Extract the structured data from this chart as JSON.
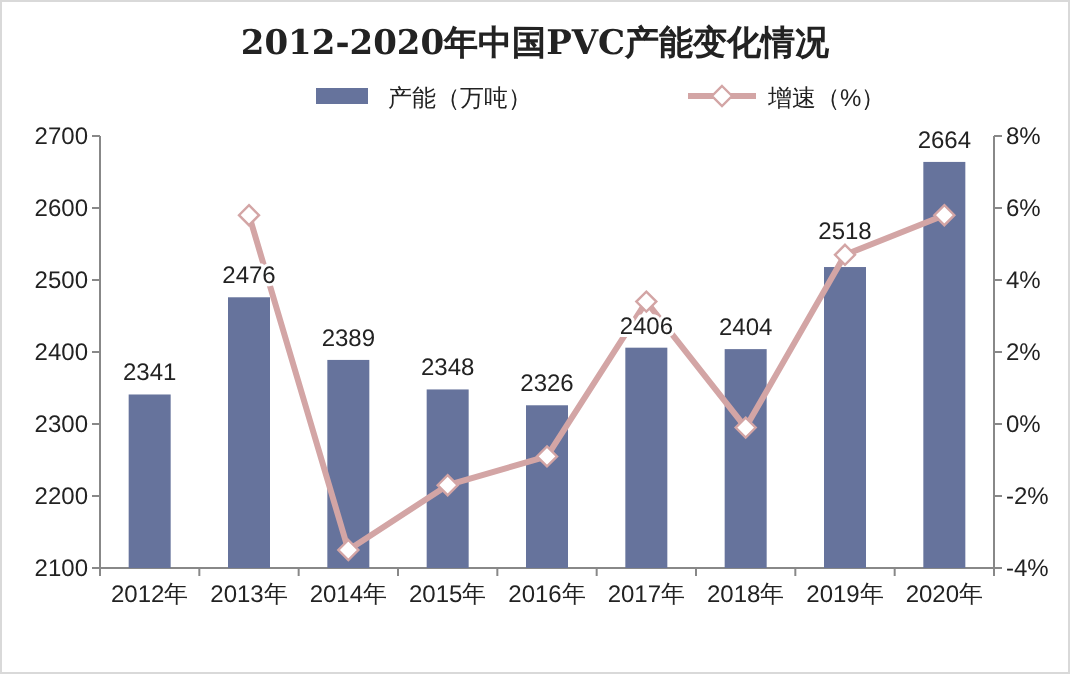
{
  "chart_data": {
    "type": "bar",
    "title": "2012-2020年中国PVC产能变化情况",
    "categories": [
      "2012年",
      "2013年",
      "2014年",
      "2015年",
      "2016年",
      "2017年",
      "2018年",
      "2019年",
      "2020年"
    ],
    "series": [
      {
        "name": "产能（万吨）",
        "color": "#66739c",
        "values": [
          2341,
          2476,
          2389,
          2348,
          2326,
          2406,
          2404,
          2518,
          2664
        ],
        "value_labels": [
          "2341",
          "2476",
          "2389",
          "2348",
          "2326",
          "2406",
          "2404",
          "2518",
          "2664"
        ]
      },
      {
        "name": "增速（%）",
        "type": "line",
        "axis": "y2",
        "color": "#d3a5a5",
        "marker": "diamond",
        "values": [
          null,
          5.8,
          -3.5,
          -1.7,
          -0.9,
          3.4,
          -0.1,
          4.7,
          5.8
        ]
      }
    ],
    "ylim": [
      2100,
      2700
    ],
    "yticks": [
      2100,
      2200,
      2300,
      2400,
      2500,
      2600,
      2700
    ],
    "y2lim": [
      -4,
      8
    ],
    "y2ticks": [
      {
        "value": -4,
        "label": "-4%"
      },
      {
        "value": -2,
        "label": "-2%"
      },
      {
        "value": 0,
        "label": "0%"
      },
      {
        "value": 2,
        "label": "2%"
      },
      {
        "value": 4,
        "label": "4%"
      },
      {
        "value": 6,
        "label": "6%"
      },
      {
        "value": 8,
        "label": "8%"
      }
    ],
    "legend": "top"
  }
}
